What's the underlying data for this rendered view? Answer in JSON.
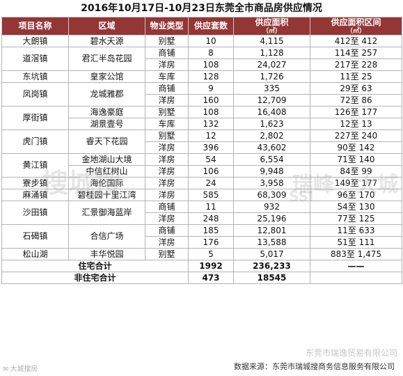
{
  "title": "2016年10月17日-10月23日东莞全市商品房供应情况",
  "header": {
    "town": "项目名称",
    "area": "区域",
    "type": "物业类型",
    "units": "供应套数",
    "sqm": "供应面积",
    "sqm_unit": "（㎡）",
    "range": "供应面积区间",
    "range_unit": "（㎡）"
  },
  "rows": [
    {
      "town": "大朗镇",
      "project": "碧水天源",
      "type": "别墅",
      "units": "10",
      "sqm": "4,115",
      "range": "412至 412"
    },
    {
      "town": "道滘镇",
      "project": "君汇半岛花园",
      "type": "商铺",
      "units": "8",
      "sqm": "1,128",
      "range": "114至 257"
    },
    {
      "town": "",
      "project": "",
      "type": "洋房",
      "units": "108",
      "sqm": "24,027",
      "range": "217至 228"
    },
    {
      "town": "东坑镇",
      "project": "皇家公馆",
      "type": "车库",
      "units": "128",
      "sqm": "1,726",
      "range": "11至 25"
    },
    {
      "town": "凤岗镇",
      "project": "龙城雅郡",
      "type": "商铺",
      "units": "9",
      "sqm": "335",
      "range": "29至 63"
    },
    {
      "town": "",
      "project": "",
      "type": "洋房",
      "units": "160",
      "sqm": "12,709",
      "range": "72至 86"
    },
    {
      "town": "厚街镇",
      "project": "海逸豪庭",
      "type": "别墅",
      "units": "108",
      "sqm": "16,408",
      "range": "126至 177"
    },
    {
      "town": "",
      "project": "湖景壹号",
      "type": "车库",
      "units": "132",
      "sqm": "1,623",
      "range": "12至 13"
    },
    {
      "town": "虎门镇",
      "project": "睿天下花园",
      "type": "别墅",
      "units": "12",
      "sqm": "2,802",
      "range": "227至 240"
    },
    {
      "town": "",
      "project": "",
      "type": "洋房",
      "units": "396",
      "sqm": "43,602",
      "range": "90至 142"
    },
    {
      "town": "黄江镇",
      "project": "金地湖山大境",
      "type": "洋房",
      "units": "54",
      "sqm": "6,554",
      "range": "71至 140"
    },
    {
      "town": "",
      "project": "中信红树山",
      "type": "洋房",
      "units": "106",
      "sqm": "9,948",
      "range": "84至 99"
    },
    {
      "town": "寮步镇",
      "project": "海伦国际",
      "type": "洋房",
      "units": "24",
      "sqm": "3,958",
      "range": "149至 177"
    },
    {
      "town": "麻涌镇",
      "project": "碧桂园十里江湾",
      "type": "洋房",
      "units": "585",
      "sqm": "68,309",
      "range": "96至 170"
    },
    {
      "town": "沙田镇",
      "project": "汇景御海蓝岸",
      "type": "商铺",
      "units": "11",
      "sqm": "932",
      "range": "54至 130"
    },
    {
      "town": "",
      "project": "",
      "type": "洋房",
      "units": "248",
      "sqm": "25,196",
      "range": "77至 125"
    },
    {
      "town": "石碣镇",
      "project": "合信广场",
      "type": "商铺",
      "units": "185",
      "sqm": "12,801",
      "range": "11至 633"
    },
    {
      "town": "",
      "project": "",
      "type": "洋房",
      "units": "176",
      "sqm": "13,588",
      "range": "51至 111"
    },
    {
      "town": "松山湖",
      "project": "丰华悦园",
      "type": "别墅",
      "units": "5",
      "sqm": "5,017",
      "range": "883至 1,475"
    }
  ],
  "totals": [
    {
      "label": "住宅合计",
      "units": "1992",
      "sqm": "236,233",
      "range": "——"
    },
    {
      "label": "非住宅合计",
      "units": "473",
      "sqm": "18545",
      "range": ""
    }
  ],
  "watermarks": {
    "left": "搜城搜",
    "right": "瑞峰 · 大城",
    "center_small": "SSI",
    "company": "东莞市瑞逸贸易有限公司"
  },
  "footer": {
    "source": "数据来源：东莞市瑞城搜商务信息服务有限公司",
    "wechat": "大城搜房"
  },
  "colors": {
    "header_bg": "#943634",
    "header_text": "#ffffff",
    "grid": "#b3b3b3"
  }
}
